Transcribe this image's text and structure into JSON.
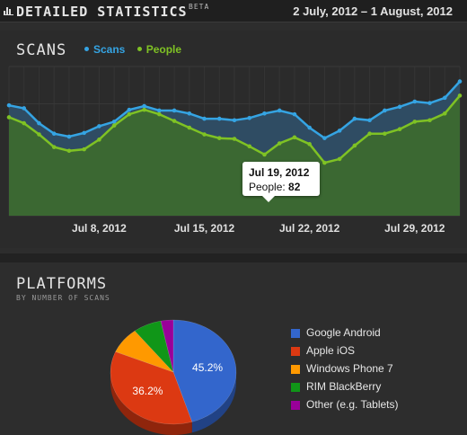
{
  "header": {
    "title": "DETAILED STATISTICS",
    "beta": "BETA",
    "date_range": "2 July, 2012 – 1 August, 2012"
  },
  "scans": {
    "title": "SCANS",
    "legend": [
      {
        "name": "Scans",
        "color": "#35a4e3"
      },
      {
        "name": "People",
        "color": "#7fc224"
      }
    ],
    "tooltip": {
      "date": "Jul 19, 2012",
      "people_label": "People:",
      "people_value": "82"
    }
  },
  "platforms": {
    "title": "PLATFORMS",
    "subtitle": "BY NUMBER OF SCANS"
  },
  "chart_data": [
    {
      "type": "area",
      "title": "SCANS",
      "x": [
        "2012-07-02",
        "2012-07-03",
        "2012-07-04",
        "2012-07-05",
        "2012-07-06",
        "2012-07-07",
        "2012-07-08",
        "2012-07-09",
        "2012-07-10",
        "2012-07-11",
        "2012-07-12",
        "2012-07-13",
        "2012-07-14",
        "2012-07-15",
        "2012-07-16",
        "2012-07-17",
        "2012-07-18",
        "2012-07-19",
        "2012-07-20",
        "2012-07-21",
        "2012-07-22",
        "2012-07-23",
        "2012-07-24",
        "2012-07-25",
        "2012-07-26",
        "2012-07-27",
        "2012-07-28",
        "2012-07-29",
        "2012-07-30",
        "2012-07-31",
        "2012-08-01"
      ],
      "tick_labels": [
        "Jul 8, 2012",
        "Jul 15, 2012",
        "Jul 22, 2012",
        "Jul 29, 2012"
      ],
      "series": [
        {
          "name": "Scans",
          "color": "#35a4e3",
          "values": [
            148,
            144,
            124,
            110,
            106,
            111,
            120,
            126,
            142,
            147,
            141,
            141,
            137,
            130,
            130,
            128,
            131,
            137,
            141,
            136,
            118,
            104,
            114,
            130,
            128,
            141,
            146,
            153,
            151,
            158,
            180
          ]
        },
        {
          "name": "People",
          "color": "#7fc224",
          "values": [
            132,
            124,
            109,
            92,
            87,
            89,
            102,
            121,
            136,
            142,
            136,
            127,
            118,
            109,
            104,
            103,
            93,
            82,
            97,
            105,
            96,
            71,
            76,
            94,
            110,
            110,
            116,
            126,
            128,
            137,
            161
          ]
        }
      ],
      "ylim": [
        0,
        200
      ],
      "grid": true,
      "legend_position": "top-left"
    },
    {
      "type": "pie",
      "title": "PLATFORMS",
      "slices": [
        {
          "label": "Google Android",
          "value": 45.2,
          "value_label": "45.2%",
          "color": "#3366cc"
        },
        {
          "label": "Apple iOS",
          "value": 36.2,
          "value_label": "36.2%",
          "color": "#dc3912"
        },
        {
          "label": "Windows Phone 7",
          "value": 8.1,
          "color": "#ff9900"
        },
        {
          "label": "RIM BlackBerry",
          "value": 7.3,
          "color": "#109618"
        },
        {
          "label": "Other (e.g. Tablets)",
          "value": 3.2,
          "color": "#990099"
        }
      ],
      "legend_position": "right"
    }
  ]
}
